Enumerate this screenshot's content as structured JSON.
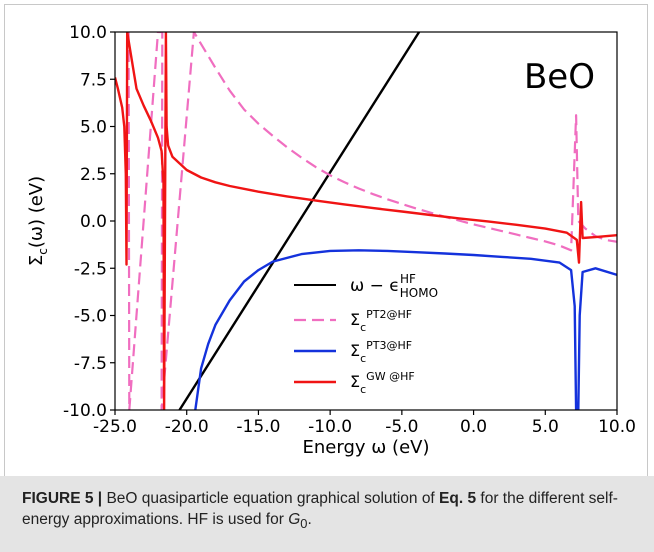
{
  "caption": {
    "label": "FIGURE 5 |",
    "text_before": " BeO quasiparticle equation graphical solution of ",
    "eq_ref": "Eq. 5",
    "text_after": " for the different self-energy approximations. HF is used for ",
    "g_symbol": "G",
    "g_sub": "0",
    "end": "."
  },
  "chart_data": {
    "type": "line",
    "annotation": "BeO",
    "xlabel": "Energy ω (eV)",
    "ylabel": "Σc(ω) (eV)",
    "xlim": [
      -25,
      10
    ],
    "ylim": [
      -10,
      10
    ],
    "xticks": [
      "-25.0",
      "-20.0",
      "-15.0",
      "-10.0",
      "-5.0",
      "0.0",
      "5.0",
      "10.0"
    ],
    "yticks": [
      "10.0",
      "7.5",
      "5.0",
      "2.5",
      "0.0",
      "-2.5",
      "-5.0",
      "-7.5",
      "-10.0"
    ],
    "grid": false,
    "legend_position": "lower-center",
    "series": [
      {
        "name": "ω − ε_HOMO^HF",
        "color": "#000000",
        "style": "solid",
        "points": [
          [
            -20.5,
            -10
          ],
          [
            -3.8,
            10
          ]
        ]
      },
      {
        "name": "Σc^PT2@HF",
        "color": "#f06ec0",
        "style": "dashed",
        "points": [
          [
            -24.05,
            10
          ],
          [
            -24.0,
            -10
          ],
          [
            -22.0,
            10
          ],
          [
            -21.7,
            10
          ],
          [
            -21.75,
            -10
          ],
          [
            -19.5,
            10
          ],
          [
            -18,
            8.1
          ],
          [
            -17,
            6.9
          ],
          [
            -16,
            5.9
          ],
          [
            -15,
            5.15
          ],
          [
            -14,
            4.5
          ],
          [
            -13,
            3.9
          ],
          [
            -12,
            3.35
          ],
          [
            -11,
            2.85
          ],
          [
            -10,
            2.42
          ],
          [
            -9,
            2.05
          ],
          [
            -8,
            1.72
          ],
          [
            -7,
            1.42
          ],
          [
            -6,
            1.15
          ],
          [
            -5,
            0.9
          ],
          [
            -4,
            0.66
          ],
          [
            -3,
            0.44
          ],
          [
            -2,
            0.22
          ],
          [
            -1,
            0.02
          ],
          [
            0,
            -0.18
          ],
          [
            1,
            -0.36
          ],
          [
            2,
            -0.54
          ],
          [
            3,
            -0.72
          ],
          [
            4,
            -0.9
          ],
          [
            5,
            -1.08
          ],
          [
            6,
            -1.3
          ],
          [
            6.8,
            -1.55
          ],
          [
            7.15,
            5.6
          ],
          [
            7.3,
            0.0
          ],
          [
            7.8,
            -0.4
          ],
          [
            8.5,
            -0.8
          ],
          [
            9.2,
            -1.0
          ],
          [
            10,
            -1.1
          ]
        ]
      },
      {
        "name": "Σc^PT3@HF",
        "color": "#1432dc",
        "style": "solid",
        "points": [
          [
            -19.4,
            -10
          ],
          [
            -19.0,
            -7.8
          ],
          [
            -18.5,
            -6.5
          ],
          [
            -18,
            -5.5
          ],
          [
            -17,
            -4.2
          ],
          [
            -16,
            -3.2
          ],
          [
            -15,
            -2.6
          ],
          [
            -14,
            -2.15
          ],
          [
            -12,
            -1.75
          ],
          [
            -10,
            -1.58
          ],
          [
            -8,
            -1.55
          ],
          [
            -6,
            -1.58
          ],
          [
            -4,
            -1.65
          ],
          [
            -2,
            -1.72
          ],
          [
            0,
            -1.8
          ],
          [
            2,
            -1.9
          ],
          [
            4,
            -2.0
          ],
          [
            6,
            -2.2
          ],
          [
            6.8,
            -2.6
          ],
          [
            7.05,
            -4.5
          ],
          [
            7.15,
            -10
          ],
          [
            7.3,
            -10
          ],
          [
            7.4,
            -5.0
          ],
          [
            7.6,
            -2.7
          ],
          [
            8.5,
            -2.5
          ],
          [
            10,
            -2.85
          ]
        ]
      },
      {
        "name": "Σc^GW@HF",
        "color": "#f01414",
        "style": "solid",
        "points": [
          [
            -25,
            7.6
          ],
          [
            -24.8,
            7.0
          ],
          [
            -24.5,
            6.0
          ],
          [
            -24.35,
            5.0
          ],
          [
            -24.25,
            2.5
          ],
          [
            -24.2,
            -2.3
          ],
          [
            -24.15,
            10
          ],
          [
            -23.5,
            7.0
          ],
          [
            -23,
            6.1
          ],
          [
            -22.5,
            5.3
          ],
          [
            -22.0,
            4.4
          ],
          [
            -21.75,
            3.7
          ],
          [
            -21.62,
            2.0
          ],
          [
            -21.58,
            -10
          ],
          [
            -21.45,
            10
          ],
          [
            -21.4,
            5.0
          ],
          [
            -21.3,
            4.0
          ],
          [
            -21.0,
            3.4
          ],
          [
            -20,
            2.7
          ],
          [
            -19,
            2.3
          ],
          [
            -18,
            2.05
          ],
          [
            -17,
            1.85
          ],
          [
            -15,
            1.55
          ],
          [
            -13,
            1.3
          ],
          [
            -11,
            1.08
          ],
          [
            -9,
            0.88
          ],
          [
            -7,
            0.68
          ],
          [
            -5,
            0.5
          ],
          [
            -3,
            0.32
          ],
          [
            -1,
            0.14
          ],
          [
            1,
            -0.02
          ],
          [
            3,
            -0.2
          ],
          [
            5,
            -0.4
          ],
          [
            6.5,
            -0.62
          ],
          [
            7.2,
            -1.0
          ],
          [
            7.35,
            -2.2
          ],
          [
            7.5,
            1.0
          ],
          [
            7.6,
            -0.9
          ],
          [
            8.5,
            -0.85
          ],
          [
            10,
            -0.75
          ]
        ]
      }
    ]
  }
}
